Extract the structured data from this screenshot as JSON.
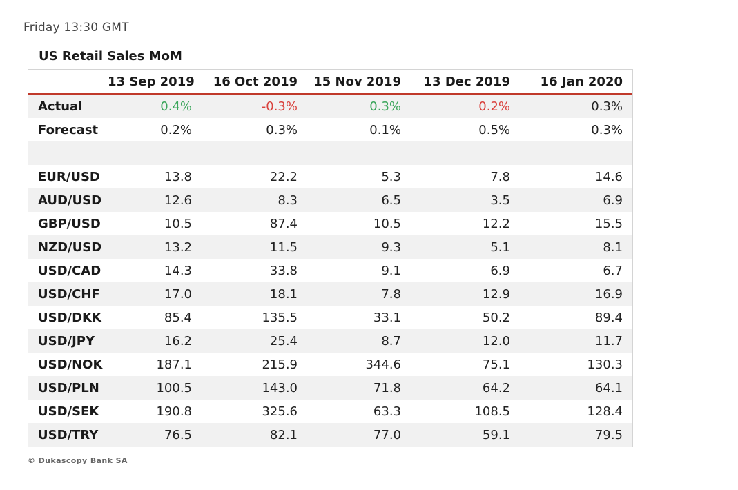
{
  "header": {
    "time": "Friday 13:30 GMT"
  },
  "table": {
    "title": "US Retail Sales MoM",
    "columns": [
      "13 Sep 2019",
      "16 Oct 2019",
      "15 Nov 2019",
      "13 Dec 2019",
      "16 Jan 2020"
    ],
    "actual": {
      "label": "Actual",
      "values": [
        "0.4%",
        "-0.3%",
        "0.3%",
        "0.2%",
        "0.3%"
      ],
      "colors": [
        "#3aa55a",
        "#d9413c",
        "#3aa55a",
        "#d9413c",
        "#222222"
      ]
    },
    "forecast": {
      "label": "Forecast",
      "values": [
        "0.2%",
        "0.3%",
        "0.1%",
        "0.5%",
        "0.3%"
      ]
    },
    "pairs": [
      {
        "label": "EUR/USD",
        "values": [
          "13.8",
          "22.2",
          "5.3",
          "7.8",
          "14.6"
        ]
      },
      {
        "label": "AUD/USD",
        "values": [
          "12.6",
          "8.3",
          "6.5",
          "3.5",
          "6.9"
        ]
      },
      {
        "label": "GBP/USD",
        "values": [
          "10.5",
          "87.4",
          "10.5",
          "12.2",
          "15.5"
        ]
      },
      {
        "label": "NZD/USD",
        "values": [
          "13.2",
          "11.5",
          "9.3",
          "5.1",
          "8.1"
        ]
      },
      {
        "label": "USD/CAD",
        "values": [
          "14.3",
          "33.8",
          "9.1",
          "6.9",
          "6.7"
        ]
      },
      {
        "label": "USD/CHF",
        "values": [
          "17.0",
          "18.1",
          "7.8",
          "12.9",
          "16.9"
        ]
      },
      {
        "label": "USD/DKK",
        "values": [
          "85.4",
          "135.5",
          "33.1",
          "50.2",
          "89.4"
        ]
      },
      {
        "label": "USD/JPY",
        "values": [
          "16.2",
          "25.4",
          "8.7",
          "12.0",
          "11.7"
        ]
      },
      {
        "label": "USD/NOK",
        "values": [
          "187.1",
          "215.9",
          "344.6",
          "75.1",
          "130.3"
        ]
      },
      {
        "label": "USD/PLN",
        "values": [
          "100.5",
          "143.0",
          "71.8",
          "64.2",
          "64.1"
        ]
      },
      {
        "label": "USD/SEK",
        "values": [
          "190.8",
          "325.6",
          "63.3",
          "108.5",
          "128.4"
        ]
      },
      {
        "label": "USD/TRY",
        "values": [
          "76.5",
          "82.1",
          "77.0",
          "59.1",
          "79.5"
        ]
      }
    ]
  },
  "footer": {
    "copyright": "© Dukascopy Bank SA"
  }
}
